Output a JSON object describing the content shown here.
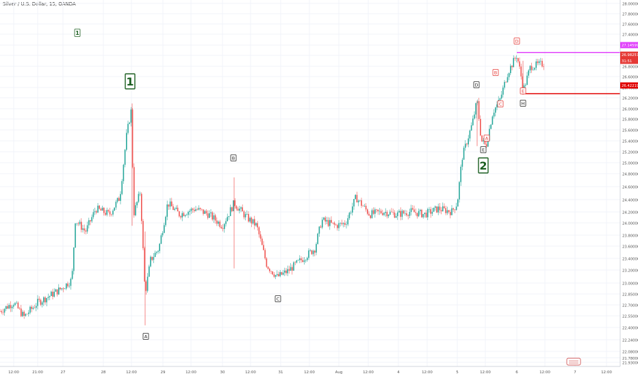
{
  "header": {
    "symbol_title": "Silver / U.S. Dollar, 15, OANDA"
  },
  "colors": {
    "up": "#26a69a",
    "down": "#ef5350",
    "grid": "#f0f3fa",
    "axis_text": "#555555",
    "wave_green": "#1b5e20",
    "magenta_line": "#e040fb",
    "red_line": "#e00000",
    "label_red": "#e53935",
    "label_black": "#222222"
  },
  "watermark": {
    "text": "1",
    "color": "#1b5e20"
  },
  "chart_data": {
    "type": "candlestick",
    "title": "Silver / U.S. Dollar, 15, OANDA",
    "ylim": [
      21.7,
      28.02
    ],
    "y_ticks": [
      "28.00000",
      "27.80000",
      "27.60000",
      "27.40000",
      "27.20000",
      "27.00000",
      "26.80000",
      "26.60000",
      "26.40000",
      "26.20000",
      "26.00000",
      "25.80000",
      "25.60000",
      "25.40000",
      "25.20000",
      "25.00000",
      "24.80000",
      "24.60000",
      "24.40000",
      "24.20000",
      "24.00000",
      "23.80000",
      "23.60000",
      "23.40000",
      "23.20000",
      "23.00000",
      "22.85000",
      "22.70000",
      "22.55000",
      "22.40000",
      "22.24000",
      "22.08000",
      "21.93000",
      "21.78000"
    ],
    "x_ticks": [
      "12:00",
      "21:00",
      "27",
      "28",
      "12:00",
      "29",
      "12:00",
      "30",
      "12:00",
      "31",
      "12:00",
      "Aug",
      "12:00",
      "4",
      "12:00",
      "5",
      "12:00",
      "6",
      "12:00",
      "7",
      "12:00"
    ],
    "grid": true,
    "price_path": [
      [
        0,
        22.6
      ],
      [
        20,
        22.75
      ],
      [
        35,
        22.5
      ],
      [
        55,
        22.75
      ],
      [
        70,
        22.85
      ],
      [
        90,
        23.0
      ],
      [
        105,
        23.15
      ],
      [
        110,
        24.2
      ],
      [
        125,
        24.0
      ],
      [
        140,
        24.4
      ],
      [
        160,
        24.3
      ],
      [
        175,
        24.6
      ],
      [
        185,
        25.7
      ],
      [
        192,
        26.15
      ],
      [
        195,
        24.3
      ],
      [
        205,
        24.7
      ],
      [
        212,
        22.9
      ],
      [
        220,
        23.5
      ],
      [
        232,
        23.7
      ],
      [
        245,
        24.5
      ],
      [
        262,
        24.3
      ],
      [
        285,
        24.4
      ],
      [
        305,
        24.3
      ],
      [
        325,
        24.1
      ],
      [
        342,
        24.5
      ],
      [
        360,
        24.25
      ],
      [
        375,
        24.1
      ],
      [
        390,
        23.4
      ],
      [
        405,
        23.2
      ],
      [
        420,
        23.3
      ],
      [
        440,
        23.5
      ],
      [
        460,
        23.7
      ],
      [
        470,
        24.2
      ],
      [
        490,
        24.1
      ],
      [
        505,
        24.15
      ],
      [
        520,
        24.6
      ],
      [
        540,
        24.3
      ],
      [
        560,
        24.35
      ],
      [
        580,
        24.3
      ],
      [
        600,
        24.35
      ],
      [
        620,
        24.3
      ],
      [
        640,
        24.4
      ],
      [
        660,
        24.35
      ],
      [
        668,
        24.5
      ],
      [
        675,
        25.3
      ],
      [
        690,
        25.9
      ],
      [
        697,
        26.3
      ],
      [
        703,
        25.6
      ],
      [
        710,
        25.5
      ],
      [
        720,
        26.1
      ],
      [
        730,
        26.3
      ],
      [
        742,
        26.8
      ],
      [
        755,
        27.1
      ],
      [
        765,
        26.5
      ],
      [
        775,
        26.9
      ],
      [
        795,
        26.95
      ]
    ],
    "annotations": [
      {
        "text": "1",
        "style": "wave-small",
        "color": "green"
      },
      {
        "text": "1",
        "style": "wave-large",
        "color": "green"
      },
      {
        "text": "A",
        "style": "box",
        "color": "black"
      },
      {
        "text": "B",
        "style": "box",
        "color": "black"
      },
      {
        "text": "C",
        "style": "box",
        "color": "black"
      },
      {
        "text": "D",
        "style": "box",
        "color": "black"
      },
      {
        "text": "E",
        "style": "box",
        "color": "black"
      },
      {
        "text": "2",
        "style": "wave-large",
        "color": "green"
      },
      {
        "text": "D",
        "style": "box",
        "color": "red"
      },
      {
        "text": "B",
        "style": "box",
        "color": "red"
      },
      {
        "text": "C",
        "style": "box",
        "color": "red"
      },
      {
        "text": "A",
        "style": "box",
        "color": "red"
      },
      {
        "text": "E",
        "style": "box",
        "color": "red"
      },
      {
        "text": "H",
        "style": "box",
        "color": "black"
      }
    ],
    "price_labels": [
      {
        "text": "27.14599",
        "price": 27.146,
        "color": "magenta"
      },
      {
        "text": "26.98257",
        "price": 26.98,
        "color": "red"
      },
      {
        "text": "31:51",
        "color": "red"
      },
      {
        "text": "26.42219",
        "price": 26.422,
        "color": "red-line"
      }
    ],
    "horizontal_lines": [
      {
        "price": 27.146,
        "color": "magenta"
      },
      {
        "price": 26.422,
        "color": "red"
      }
    ]
  }
}
